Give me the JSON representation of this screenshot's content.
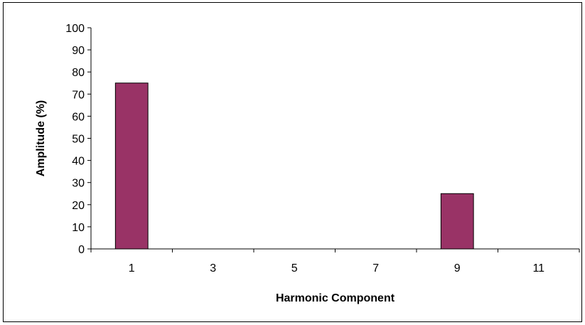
{
  "chart_data": {
    "type": "bar",
    "categories": [
      "1",
      "3",
      "5",
      "7",
      "9",
      "11"
    ],
    "series": [
      {
        "values": [
          75,
          0,
          0,
          0,
          25,
          0
        ]
      }
    ],
    "title": "",
    "xlabel": "Harmonic Component",
    "ylabel": "Amplitude (%)",
    "ylim": [
      0,
      100
    ],
    "yticks": [
      0,
      10,
      20,
      30,
      40,
      50,
      60,
      70,
      80,
      90,
      100
    ],
    "grid": false,
    "legend": "none",
    "bar_color": "#993366",
    "bar_edge_color": "#000000"
  }
}
